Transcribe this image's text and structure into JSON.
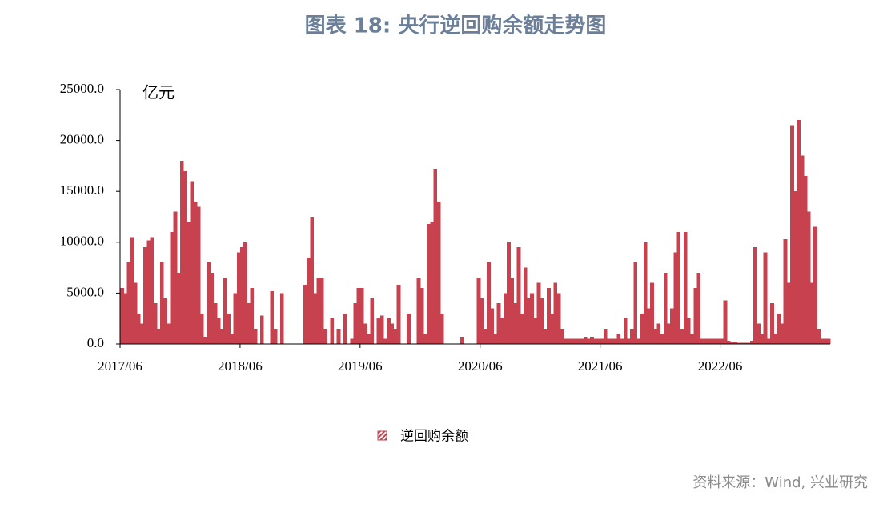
{
  "chart_data": {
    "type": "bar",
    "title": "图表 18: 央行逆回购余额走势图",
    "y_label": "亿元",
    "source": "资料来源：Wind, 兴业研究",
    "categories": [
      "2017/06",
      null,
      null,
      null,
      null,
      null,
      null,
      null,
      null,
      null,
      null,
      null,
      null,
      null,
      null,
      null,
      null,
      null,
      null,
      null,
      null,
      null,
      null,
      null,
      null,
      null,
      null,
      null,
      null,
      null,
      null,
      null,
      null,
      null,
      null,
      null,
      "2018/06",
      null,
      null,
      null,
      null,
      null,
      null,
      null,
      null,
      null,
      null,
      null,
      null,
      null,
      null,
      null,
      null,
      null,
      null,
      null,
      null,
      null,
      null,
      null,
      null,
      null,
      null,
      null,
      null,
      null,
      null,
      null,
      null,
      null,
      null,
      null,
      "2019/06",
      null,
      null,
      null,
      null,
      null,
      null,
      null,
      null,
      null,
      null,
      null,
      null,
      null,
      null,
      null,
      null,
      null,
      null,
      null,
      null,
      null,
      null,
      null,
      null,
      null,
      null,
      null,
      null,
      null,
      null,
      null,
      null,
      null,
      null,
      null,
      "2020/06",
      null,
      null,
      null,
      null,
      null,
      null,
      null,
      null,
      null,
      null,
      null,
      null,
      null,
      null,
      null,
      null,
      null,
      null,
      null,
      null,
      null,
      null,
      null,
      null,
      null,
      null,
      null,
      null,
      null,
      null,
      null,
      null,
      null,
      null,
      null,
      "2021/06",
      null,
      null,
      null,
      null,
      null,
      null,
      null,
      null,
      null,
      null,
      null,
      null,
      null,
      null,
      null,
      null,
      null,
      null,
      null,
      null,
      null,
      null,
      null,
      null,
      null,
      null,
      null,
      null,
      null,
      null,
      null,
      null,
      null,
      null,
      null,
      "2022/06",
      null,
      null,
      null,
      null,
      null,
      null,
      null,
      null,
      null,
      null,
      null,
      null,
      null,
      null,
      null,
      null,
      null,
      null,
      null,
      null,
      null,
      null,
      null,
      null,
      null,
      null,
      null,
      null,
      null,
      null,
      null,
      null
    ],
    "series": [
      {
        "name": "逆回购余额",
        "color": "#c8414f",
        "values": [
          5500,
          5000,
          8000,
          10500,
          6000,
          3000,
          2000,
          9500,
          10200,
          10500,
          4000,
          1500,
          8000,
          4500,
          2000,
          11000,
          13000,
          7000,
          18000,
          17000,
          12000,
          16000,
          14000,
          13500,
          3000,
          700,
          8000,
          7000,
          4000,
          2500,
          1500,
          6500,
          3000,
          1000,
          5000,
          9000,
          9500,
          10000,
          4000,
          5500,
          1500,
          0,
          2800,
          0,
          0,
          5200,
          1500,
          0,
          5000,
          0,
          0,
          0,
          0,
          0,
          0,
          5800,
          8500,
          12500,
          5000,
          6500,
          6500,
          1500,
          0,
          2500,
          0,
          1500,
          0,
          3000,
          0,
          500,
          4000,
          5500,
          5500,
          2000,
          1000,
          4500,
          0,
          2500,
          2800,
          500,
          2500,
          2000,
          1500,
          5800,
          0,
          0,
          3000,
          0,
          0,
          6500,
          5500,
          1000,
          11800,
          12000,
          17200,
          14000,
          3000,
          0,
          0,
          0,
          0,
          0,
          700,
          0,
          0,
          0,
          0,
          6500,
          4500,
          1500,
          8000,
          3500,
          1000,
          4000,
          2500,
          5000,
          10000,
          6500,
          4000,
          9500,
          3000,
          7500,
          4500,
          5000,
          2500,
          6000,
          4500,
          1500,
          5500,
          3000,
          6000,
          5000,
          1500,
          500,
          500,
          500,
          500,
          500,
          500,
          700,
          500,
          700,
          500,
          500,
          500,
          1500,
          500,
          500,
          500,
          1000,
          500,
          2500,
          500,
          1500,
          8000,
          500,
          3000,
          10000,
          3500,
          6000,
          1500,
          2000,
          1000,
          7000,
          2000,
          3500,
          9000,
          11000,
          1500,
          11000,
          2500,
          1000,
          5500,
          7000,
          500,
          500,
          500,
          500,
          500,
          500,
          500,
          4300,
          300,
          200,
          200,
          100,
          100,
          100,
          100,
          300,
          9500,
          2000,
          1000,
          9000,
          500,
          4000,
          1000,
          3000,
          2000,
          10300,
          6000,
          21500,
          15000,
          22000,
          18500,
          16500,
          13000,
          6000,
          11500,
          1500,
          500,
          500,
          500
        ]
      }
    ],
    "ylim": [
      0,
      25000
    ],
    "yticks": [
      {
        "value": 0,
        "label": "0.0"
      },
      {
        "value": 5000,
        "label": "5000.0"
      },
      {
        "value": 10000,
        "label": "10000.0"
      },
      {
        "value": 15000,
        "label": "15000.0"
      },
      {
        "value": 20000,
        "label": "20000.0"
      },
      {
        "value": 25000,
        "label": "25000.0"
      }
    ],
    "grid": false
  }
}
